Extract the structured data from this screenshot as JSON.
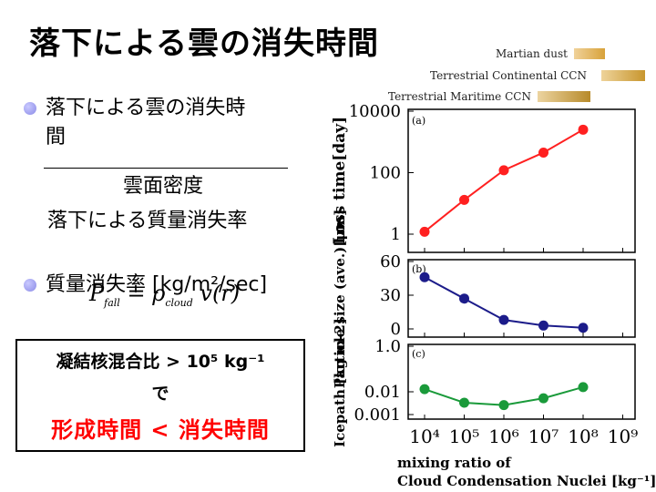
{
  "slide": {
    "title": "落下による雲の消失時間",
    "bullet1_line1": "落下による雲の消失時",
    "bullet1_line2": "間",
    "numerator": "雲面密度",
    "denominator": "落下による質量消失率",
    "bullet2": "質量消失率 [kg/m²/sec]",
    "formula_main": "P",
    "formula_sub1": "fall",
    "formula_mid": " = ρ",
    "formula_sub2": "cloud",
    "formula_end": " v(r)",
    "box_line1": "凝結核混合比 > 10⁵ kg⁻¹",
    "box_line2": "で",
    "box_line3": "形成時間 < 消失時間",
    "box_line3_color": "#ff0000"
  },
  "legend": [
    {
      "label": "Martian dust",
      "color": "#d8a23a"
    },
    {
      "label": "Terrestrial Continental CCN",
      "color": "#c8962e"
    },
    {
      "label": "Terrestrial Maritime CCN",
      "color": "#b78a2a"
    }
  ],
  "chart_data": [
    {
      "type": "line",
      "panel": "(a)",
      "ylabel": "Loss time[day]",
      "yscale": "log",
      "ylim": [
        1,
        10000
      ],
      "yticks": [
        "1",
        "100",
        "10000"
      ],
      "x": [
        10000,
        100000,
        1000000,
        10000000,
        100000000
      ],
      "series": [
        {
          "values": [
            1.2,
            13,
            120,
            450,
            2500
          ],
          "color": "#ff2020"
        }
      ]
    },
    {
      "type": "line",
      "panel": "(b)",
      "ylabel": "Particle size (ave.)[μm]",
      "ylim": [
        0,
        60
      ],
      "yticks": [
        "0",
        "30",
        "60"
      ],
      "x": [
        10000,
        100000,
        1000000,
        10000000,
        100000000
      ],
      "series": [
        {
          "values": [
            46,
            27,
            8,
            3,
            1
          ],
          "color": "#1c1c8a"
        }
      ]
    },
    {
      "type": "line",
      "panel": "(c)",
      "ylabel": "Icepath [kg m-2]",
      "yscale": "log",
      "ylim": [
        0.001,
        1.0
      ],
      "yticks": [
        "0.001",
        "0.01",
        "1.0"
      ],
      "xlabel_line1": "mixing ratio of",
      "xlabel_line2": "Cloud Condensation Nuclei [kg⁻¹]",
      "xticks": [
        "10⁴",
        "10⁵",
        "10⁶",
        "10⁷",
        "10⁸",
        "10⁹"
      ],
      "x": [
        10000,
        100000,
        1000000,
        10000000,
        100000000
      ],
      "series": [
        {
          "values": [
            0.013,
            0.0033,
            0.0026,
            0.0052,
            0.016
          ],
          "color": "#1a9a3a"
        }
      ]
    }
  ]
}
